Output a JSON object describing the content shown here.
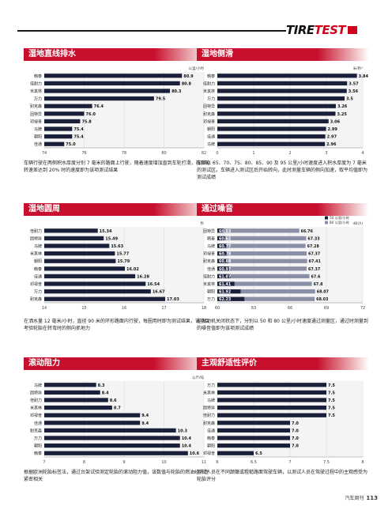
{
  "logo": {
    "part1": "TIRE",
    "part2": "TEST",
    "flag": "测试"
  },
  "footer": {
    "magazine": "汽车周刊",
    "page": "113"
  },
  "panels": [
    {
      "id": "wet-lateral",
      "title": "湿地直线排水",
      "unit": "公里/小时",
      "caption": "车辆行驶在两侧积水厚度分别 7 毫米的路面上行驶，随着速度增加直到车轮打滑，前后轮转速差达到 20% 时的速度即为该项测试结果",
      "chart_data": {
        "type": "bar",
        "categories": [
          "韩泰",
          "倍耐力",
          "米其林",
          "万力",
          "耐克森",
          "固特异",
          "邓禄普",
          "马牌",
          "朝阳",
          "佳通"
        ],
        "values": [
          80.9,
          80.8,
          80.3,
          79.5,
          76.4,
          76.0,
          75.8,
          75.4,
          75.4,
          75.0
        ],
        "labels": [
          "80.9",
          "80.8",
          "80.3",
          "79.5",
          "76.4",
          "76.0",
          "75.8",
          "75.4",
          "75.4",
          "75.0"
        ],
        "xlim": [
          74,
          82
        ],
        "ticks": [
          "74",
          "76",
          "78",
          "80",
          "82"
        ]
      }
    },
    {
      "id": "wet-sideslip",
      "title": "湿地侧滑",
      "unit": "米/秒²",
      "caption": "车辆以 65、70、75、80、85、90 及 95 公里/小时速度进入积水厚度为 7 毫米的测试区。车辆进入测试区后开始转向，此时测量车辆的侧向加速，取平均值即为测试成绩",
      "chart_data": {
        "type": "bar",
        "categories": [
          "韩泰",
          "倍耐力",
          "米其林",
          "万力",
          "固特异",
          "耐克森",
          "邓禄普",
          "朝阳",
          "佳通",
          "马牌"
        ],
        "values": [
          3.84,
          3.57,
          3.56,
          3.5,
          3.26,
          3.25,
          3.06,
          2.99,
          2.97,
          2.96
        ],
        "labels": [
          "3.84",
          "3.57",
          "3.56",
          "3.5",
          "3.26",
          "3.25",
          "3.06",
          "2.99",
          "2.97",
          "2.96"
        ],
        "xlim": [
          0,
          4
        ],
        "ticks": [
          "0",
          "1",
          "2",
          "3",
          "4"
        ]
      }
    },
    {
      "id": "wet-circle",
      "title": "湿地圆周",
      "unit": "秒",
      "caption": "在洒水量 12 毫米/小时，直径 90 米的环形路面内行驶，每圈用时即为测试结果，该项目考验轮胎在转弯时的侧向抓地力",
      "chart_data": {
        "type": "bar",
        "categories": [
          "倍耐力",
          "固特异",
          "马牌",
          "米其林",
          "朝阳",
          "韩泰",
          "佳通",
          "邓禄普",
          "万力",
          "耐克森"
        ],
        "values": [
          15.34,
          15.49,
          15.63,
          15.77,
          15.79,
          16.02,
          16.28,
          16.54,
          16.67,
          17.03
        ],
        "labels": [
          "15.34",
          "15.49",
          "15.63",
          "15.77",
          "15.79",
          "16.02",
          "16.28",
          "16.54",
          "16.67",
          "17.03"
        ],
        "xlim": [
          14,
          18
        ],
        "ticks": [
          "14",
          "15",
          "16",
          "17",
          "18"
        ]
      }
    },
    {
      "id": "pass-noise",
      "title": "通过噪音",
      "unit": "dB(A)",
      "legend": [
        "50 公里/小时",
        "80 公里/小时"
      ],
      "caption": "在发动机关闭状态下，分别以 50 和 80 公里/小时速度通过测量区，通过时测量到的噪音值即为该项测试成绩",
      "chart_data": {
        "type": "bar",
        "categories": [
          "固特异",
          "韩泰",
          "马牌",
          "邓禄普",
          "耐克森",
          "佳通",
          "倍耐力",
          "米其林",
          "朝阳",
          "万力"
        ],
        "series": [
          {
            "name": "50 公里/小时",
            "values": [
              60.53,
              60.62,
              60.77,
              60.78,
              60.89,
              60.97,
              61.07,
              61.41,
              61.92,
              62.23
            ],
            "labels": [
              "60.53",
              "60.62",
              "60.77",
              "60.78",
              "60.89",
              "60.97",
              "61.07",
              "61.41",
              "61.92",
              "62.23"
            ]
          },
          {
            "name": "80 公里/小时",
            "values": [
              66.76,
              67.33,
              67.28,
              67.37,
              67.41,
              67.37,
              67.6,
              67.8,
              68.07,
              68.03
            ],
            "labels": [
              "66.76",
              "67.33",
              "67.28",
              "67.37",
              "67.41",
              "67.37",
              "67.6",
              "67.8",
              "68.07",
              "68.03"
            ]
          }
        ],
        "xlim": [
          60,
          72
        ],
        "ticks": [
          "60",
          "63",
          "66",
          "69",
          "72"
        ]
      }
    },
    {
      "id": "rolling",
      "title": "滚动阻力",
      "unit": "公斤/吨",
      "caption": "根据欧洲轮胎标签法，通过台架试验测定轮胎的滚动阻力值，该数值与轮胎的燃油经济性紧密相关",
      "chart_data": {
        "type": "bar",
        "categories": [
          "马牌",
          "固特异",
          "倍耐力",
          "米其林",
          "邓禄普",
          "佳通",
          "耐克森",
          "万力",
          "朝阳",
          "韩泰"
        ],
        "values": [
          8.3,
          8.4,
          8.6,
          8.7,
          9.4,
          9.4,
          10.3,
          10.4,
          10.4,
          10.6
        ],
        "labels": [
          "8.3",
          "8.4",
          "8.6",
          "8.7",
          "9.4",
          "9.4",
          "10.3",
          "10.4",
          "10.4",
          "10.6"
        ],
        "xlim": [
          7,
          11
        ],
        "ticks": [
          "7",
          "8",
          "9",
          "10",
          "11"
        ]
      }
    },
    {
      "id": "comfort",
      "title": "主观舒适性评价",
      "unit": "",
      "caption": "测试人员在不同颠簸或粗糙路面驾驶车辆，以测试人员在驾驶过程中的主观感受为轮胎评分",
      "chart_data": {
        "type": "bar",
        "categories": [
          "万力",
          "米其林",
          "马牌",
          "固特异",
          "倍耐力",
          "耐克森",
          "佳通",
          "韩泰",
          "朝阳",
          "邓禄普"
        ],
        "values": [
          7.5,
          7.5,
          7.5,
          7.5,
          7.5,
          7.0,
          7.0,
          7.0,
          7.0,
          6.5
        ],
        "labels": [
          "7.5",
          "7.5",
          "7.5",
          "7.5",
          "7.5",
          "7.0",
          "7.0",
          "7.0",
          "7.0",
          "6.5"
        ],
        "xlim": [
          6,
          8
        ],
        "ticks": [
          "6",
          "6.5",
          "7",
          "7.5",
          "8"
        ]
      }
    }
  ]
}
